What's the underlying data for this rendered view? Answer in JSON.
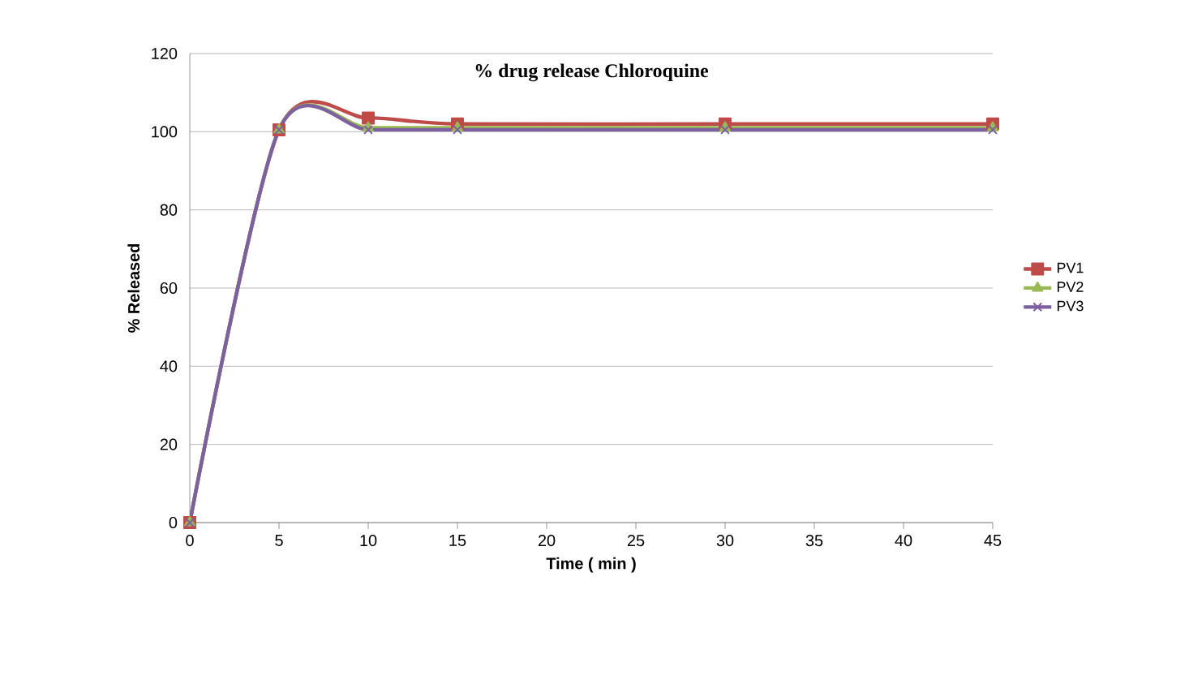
{
  "chart_data": {
    "type": "line",
    "title": "% drug release Chloroquine",
    "xlabel": "Time ( min )",
    "ylabel": "% Released",
    "x": [
      0,
      5,
      10,
      15,
      30,
      45
    ],
    "series": [
      {
        "name": "PV1",
        "color": "#be4b48",
        "marker": "square",
        "values": [
          0,
          100.5,
          103.5,
          102,
          102,
          102
        ]
      },
      {
        "name": "PV2",
        "color": "#98b954",
        "marker": "triangle",
        "values": [
          0,
          100.5,
          101,
          101,
          101,
          101
        ]
      },
      {
        "name": "PV3",
        "color": "#7d60a0",
        "marker": "cross",
        "values": [
          0,
          100.5,
          100.5,
          100.5,
          100.5,
          100.5
        ]
      }
    ],
    "xlim": [
      0,
      45
    ],
    "xticks": [
      0,
      5,
      10,
      15,
      20,
      25,
      30,
      35,
      40,
      45
    ],
    "ylim": [
      0,
      120
    ],
    "yticks": [
      0,
      20,
      40,
      60,
      80,
      100,
      120
    ],
    "grid": "y",
    "legend": "right"
  }
}
